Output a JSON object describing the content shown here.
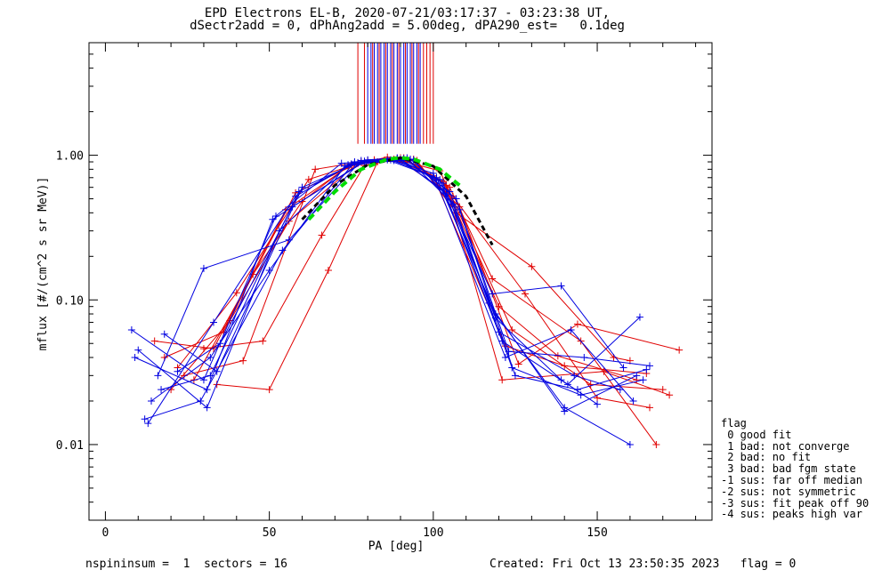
{
  "title_line1": "EPD Electrons EL-B, 2020-07-21/03:17:37 - 03:23:38 UT,",
  "title_line2": "dSectr2add = 0, dPhAng2add = 5.00deg, dPA290_est=   0.1deg",
  "footer": {
    "left": "nspininsum =  1  sectors = 16",
    "right": "Created: Fri Oct 13 23:50:35 2023   flag = 0"
  },
  "legend": {
    "title": "flag",
    "items": [
      " 0 good fit",
      " 1 bad: not converge",
      " 2 bad: no fit",
      " 3 bad: bad fgm state",
      "-1 sus: far off median",
      "-2 sus: not symmetric",
      "-3 sus: fit peak off 90",
      "-4 sus: peaks high var"
    ]
  },
  "colors": {
    "red_series": "#e00000",
    "blue_series": "#0000e0",
    "fit_green": "#00dd00",
    "fit_black": "#000000"
  },
  "chart_data": {
    "type": "line",
    "xlabel": "PA [deg]",
    "ylabel": "mflux [#/(cm^2 s sr MeV)]",
    "xlim": [
      -5,
      185
    ],
    "ylim": [
      0.003,
      6.0
    ],
    "yscale": "log",
    "xticks": [
      0,
      50,
      100,
      150
    ],
    "xtick_labels": [
      "0",
      "50",
      "100",
      "150"
    ],
    "yticks": [
      0.01,
      0.1,
      1.0
    ],
    "ytick_labels": [
      "0.01",
      "0.10",
      "1.00"
    ],
    "series": [
      {
        "color": "red",
        "x": [
          15,
          33,
          55,
          75,
          88,
          100,
          122,
          140,
          165
        ],
        "y": [
          0.052,
          0.046,
          0.42,
          0.86,
          0.94,
          0.72,
          0.048,
          0.035,
          0.031
        ]
      },
      {
        "color": "red",
        "x": [
          18,
          36,
          58,
          78,
          90,
          103,
          120,
          138,
          162
        ],
        "y": [
          0.04,
          0.06,
          0.55,
          0.9,
          0.96,
          0.66,
          0.09,
          0.041,
          0.028
        ]
      },
      {
        "color": "red",
        "x": [
          22,
          40,
          62,
          80,
          92,
          105,
          118,
          145,
          168
        ],
        "y": [
          0.034,
          0.112,
          0.68,
          0.92,
          0.93,
          0.6,
          0.14,
          0.052,
          0.01
        ]
      },
      {
        "color": "red",
        "x": [
          27,
          45,
          60,
          74,
          86,
          102,
          124,
          148,
          170
        ],
        "y": [
          0.028,
          0.15,
          0.48,
          0.84,
          0.97,
          0.78,
          0.062,
          0.026,
          0.024
        ]
      },
      {
        "color": "red",
        "x": [
          20,
          38,
          56,
          77,
          89,
          106,
          128,
          150,
          166
        ],
        "y": [
          0.024,
          0.072,
          0.35,
          0.88,
          0.95,
          0.52,
          0.11,
          0.021,
          0.018
        ]
      },
      {
        "color": "red",
        "x": [
          24,
          42,
          64,
          82,
          94,
          108,
          126,
          144,
          175
        ],
        "y": [
          0.03,
          0.038,
          0.8,
          0.93,
          0.94,
          0.44,
          0.036,
          0.068,
          0.045
        ]
      },
      {
        "color": "red",
        "x": [
          30,
          48,
          66,
          79,
          91,
          104,
          121,
          152,
          172
        ],
        "y": [
          0.046,
          0.052,
          0.28,
          0.85,
          0.96,
          0.62,
          0.028,
          0.032,
          0.022
        ]
      },
      {
        "color": "red",
        "x": [
          34,
          50,
          68,
          83,
          95,
          107,
          130,
          155,
          160
        ],
        "y": [
          0.026,
          0.024,
          0.16,
          0.9,
          0.92,
          0.4,
          0.17,
          0.04,
          0.038
        ]
      },
      {
        "color": "blue",
        "x": [
          8,
          30,
          52,
          72,
          87,
          101,
          119,
          140,
          160
        ],
        "y": [
          0.062,
          0.028,
          0.38,
          0.88,
          0.93,
          0.7,
          0.08,
          0.018,
          0.01
        ]
      },
      {
        "color": "blue",
        "x": [
          10,
          31,
          53,
          74,
          89,
          103,
          121,
          141,
          163
        ],
        "y": [
          0.045,
          0.018,
          0.3,
          0.86,
          0.95,
          0.58,
          0.052,
          0.026,
          0.076
        ]
      },
      {
        "color": "blue",
        "x": [
          12,
          29,
          54,
          76,
          90,
          104,
          118,
          139,
          158
        ],
        "y": [
          0.015,
          0.02,
          0.22,
          0.9,
          0.94,
          0.54,
          0.11,
          0.125,
          0.034
        ]
      },
      {
        "color": "blue",
        "x": [
          14,
          32,
          50,
          73,
          88,
          100,
          122,
          142,
          161
        ],
        "y": [
          0.02,
          0.04,
          0.16,
          0.84,
          0.92,
          0.75,
          0.04,
          0.062,
          0.02
        ]
      },
      {
        "color": "blue",
        "x": [
          16,
          30,
          56,
          78,
          92,
          106,
          124,
          145,
          164
        ],
        "y": [
          0.03,
          0.165,
          0.26,
          0.92,
          0.96,
          0.46,
          0.034,
          0.022,
          0.028
        ]
      },
      {
        "color": "blue",
        "x": [
          13,
          33,
          58,
          75,
          86,
          102,
          120,
          143,
          157
        ],
        "y": [
          0.014,
          0.07,
          0.52,
          0.87,
          0.93,
          0.68,
          0.06,
          0.03,
          0.024
        ]
      },
      {
        "color": "blue",
        "x": [
          18,
          34,
          60,
          77,
          91,
          105,
          117,
          140,
          162
        ],
        "y": [
          0.058,
          0.032,
          0.6,
          0.89,
          0.95,
          0.56,
          0.095,
          0.017,
          0.03
        ]
      },
      {
        "color": "blue",
        "x": [
          9,
          31,
          51,
          79,
          93,
          107,
          123,
          146,
          166
        ],
        "y": [
          0.04,
          0.024,
          0.36,
          0.91,
          0.94,
          0.5,
          0.044,
          0.04,
          0.035
        ]
      },
      {
        "color": "blue",
        "x": [
          22,
          35,
          57,
          80,
          89,
          103,
          119,
          139,
          150
        ],
        "y": [
          0.032,
          0.05,
          0.44,
          0.93,
          0.96,
          0.64,
          0.075,
          0.028,
          0.019
        ]
      },
      {
        "color": "blue",
        "x": [
          17,
          32,
          59,
          76,
          94,
          108,
          125,
          144,
          165
        ],
        "y": [
          0.024,
          0.03,
          0.56,
          0.88,
          0.93,
          0.42,
          0.03,
          0.024,
          0.033
        ]
      }
    ],
    "fit_black": {
      "x": [
        60,
        70,
        80,
        90,
        100,
        110,
        118
      ],
      "y": [
        0.36,
        0.62,
        0.86,
        0.96,
        0.84,
        0.52,
        0.24
      ]
    },
    "fit_green": {
      "x": [
        62,
        70,
        78,
        86,
        90,
        94,
        102,
        108
      ],
      "y": [
        0.36,
        0.56,
        0.8,
        0.94,
        0.96,
        0.94,
        0.8,
        0.62
      ]
    },
    "top_lines": {
      "blue_x": [
        80,
        81,
        82,
        83,
        84,
        85,
        86,
        87,
        88,
        89,
        90,
        91,
        92,
        93,
        94,
        95,
        96
      ],
      "red_x": [
        77,
        79,
        81.5,
        83.5,
        85.5,
        87.5,
        89.5,
        91.5,
        93.5,
        95.5,
        97,
        98,
        99,
        100
      ]
    }
  }
}
